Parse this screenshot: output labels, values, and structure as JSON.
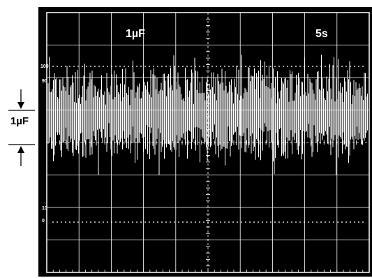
{
  "chart_data": {
    "type": "line",
    "title": "",
    "scale_vertical": "1µF",
    "scale_horizontal": "5s",
    "side_marker_label": "1µF",
    "graticule": {
      "divisions_x": 10,
      "divisions_y": 8
    },
    "y_tick_labels": [
      "100",
      "90",
      "10",
      "0"
    ],
    "trace_level_divisions": {
      "center": 4.9,
      "peak_to_peak": 2.6,
      "spike_min": 3.0,
      "spike_max": 6.7
    },
    "colors": {
      "screen": "#000000",
      "grid": "#ffffff",
      "trace": "#ffffff",
      "frame": "#000000"
    }
  }
}
